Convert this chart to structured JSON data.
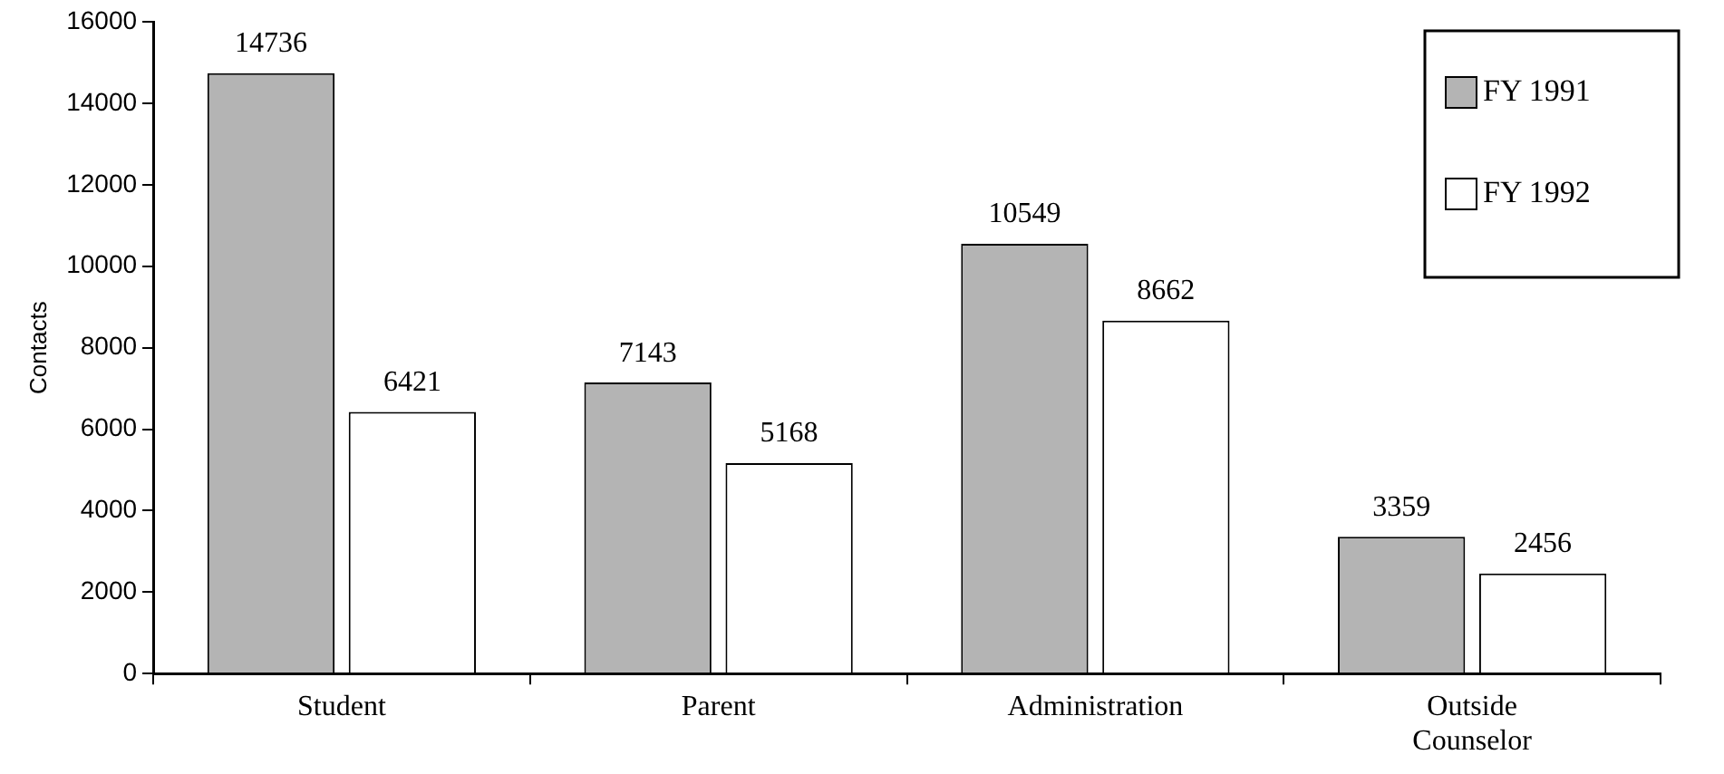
{
  "chart_data": {
    "type": "bar",
    "ylabel": "Contacts",
    "categories": [
      "Student",
      "Parent",
      "Administration",
      "Outside Counselor"
    ],
    "series": [
      {
        "name": "FY 1991",
        "color": "#b4b4b4",
        "values": [
          14736,
          7143,
          10549,
          3359
        ]
      },
      {
        "name": "FY 1992",
        "color": "#ffffff",
        "values": [
          6421,
          5168,
          8662,
          2456
        ]
      }
    ],
    "ylim": [
      0,
      16000
    ],
    "yticks": [
      0,
      2000,
      4000,
      6000,
      8000,
      10000,
      12000,
      14000,
      16000
    ],
    "grid": false,
    "legend": "top right",
    "data_labels": true
  }
}
